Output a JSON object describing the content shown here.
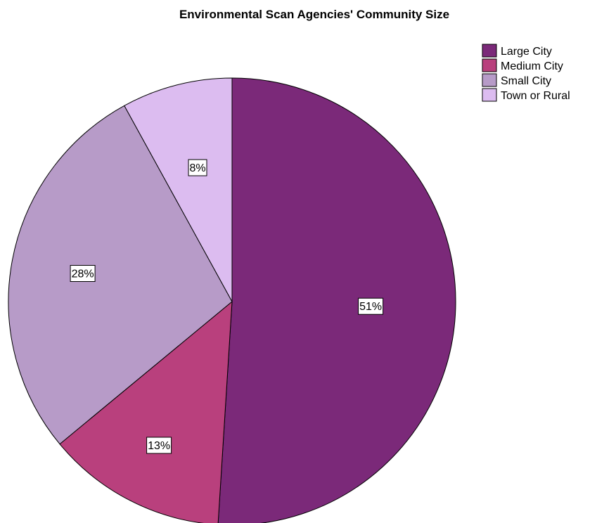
{
  "chart_data": {
    "type": "pie",
    "title": "Environmental Scan Agencies' Community Size",
    "categories": [
      "Large City",
      "Medium City",
      "Small City",
      "Town or Rural"
    ],
    "values": [
      51,
      13,
      28,
      8
    ],
    "data_labels": [
      "51%",
      "13%",
      "28%",
      "8%"
    ],
    "colors": [
      "#7b2979",
      "#b9407d",
      "#b79bc8",
      "#dcbcf0"
    ],
    "start_angle": "12 o'clock",
    "direction": "clockwise",
    "legend": {
      "position": "top-right",
      "entries": [
        "Large City",
        "Medium City",
        "Small City",
        "Town or Rural"
      ]
    }
  }
}
